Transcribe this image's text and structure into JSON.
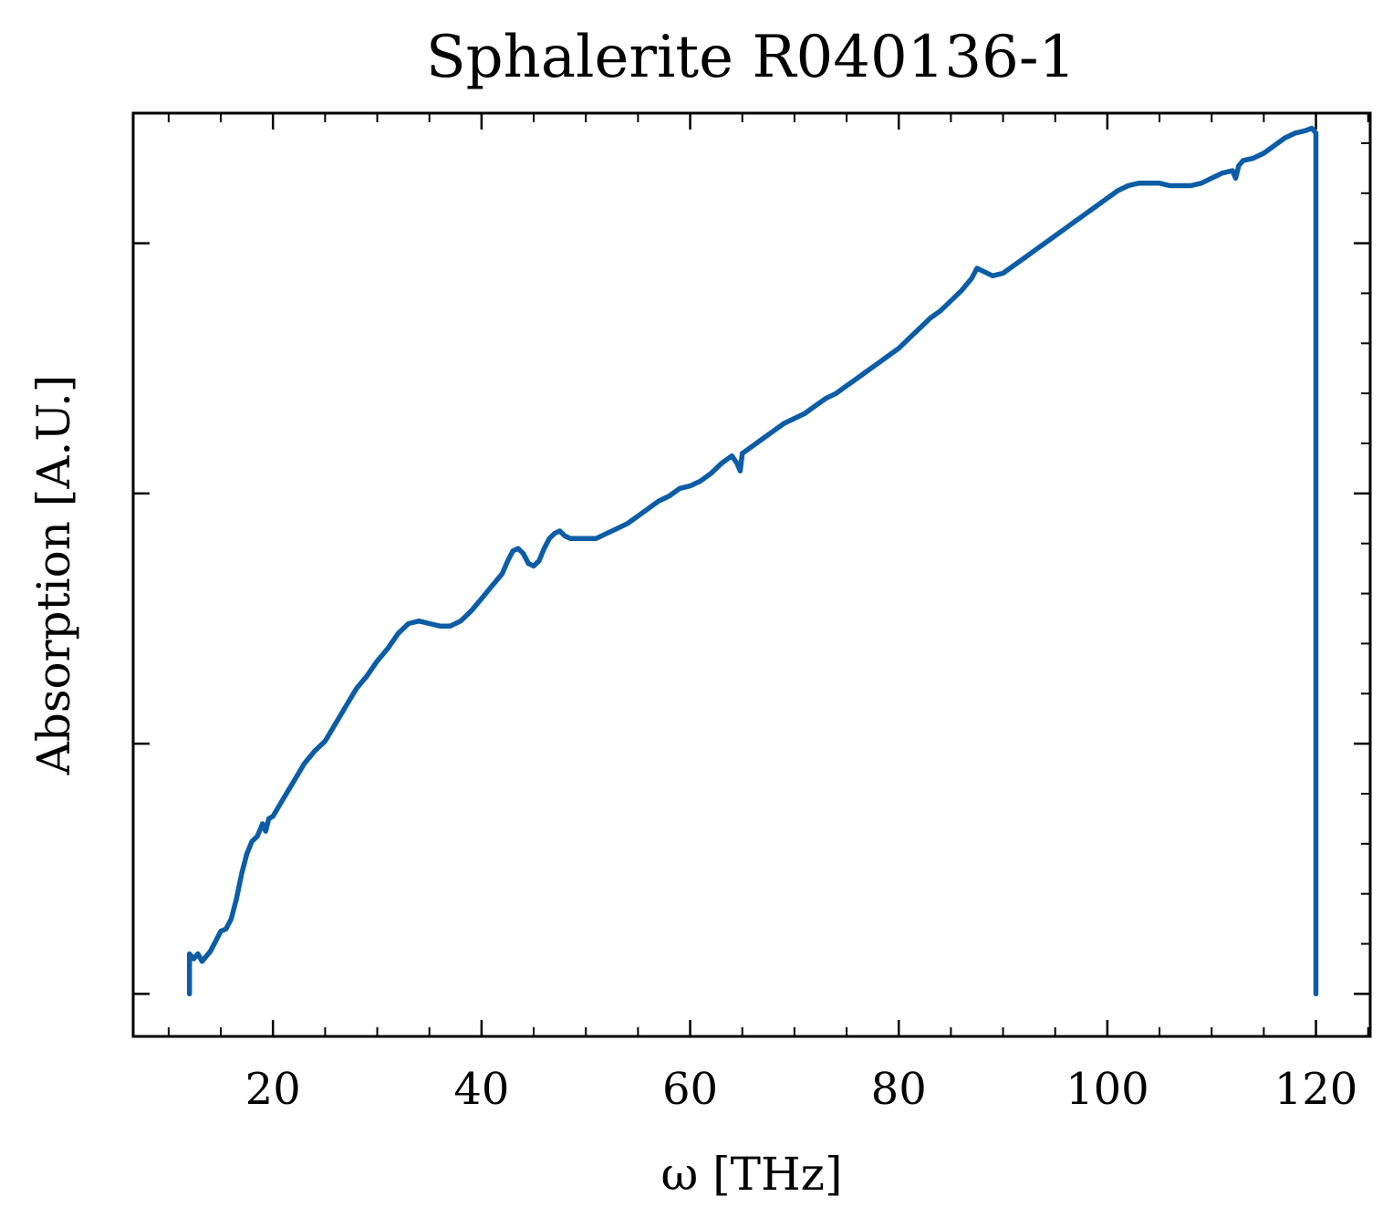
{
  "chart_data": {
    "type": "line",
    "title": "Sphalerite R040136-1",
    "xlabel": "ω [THz]",
    "ylabel": "Absorption [A.U.]",
    "xlim": [
      6.6,
      125.2
    ],
    "ylim": [
      -0.17,
      3.52
    ],
    "x_ticks": [
      20,
      40,
      60,
      80,
      100,
      120
    ],
    "x_tick_labels": [
      "20",
      "40",
      "60",
      "80",
      "100",
      "120"
    ],
    "y_ticks": [
      0,
      1,
      2,
      3
    ],
    "y_tick_labels": [],
    "grid": false,
    "color": "#0C5DA5",
    "series": [
      {
        "points": [
          [
            12.0,
            0.0
          ],
          [
            12.0,
            0.16
          ],
          [
            12.4,
            0.14
          ],
          [
            12.8,
            0.16
          ],
          [
            13.2,
            0.13
          ],
          [
            13.6,
            0.15
          ],
          [
            14.0,
            0.17
          ],
          [
            14.5,
            0.21
          ],
          [
            15.0,
            0.25
          ],
          [
            15.5,
            0.26
          ],
          [
            16.0,
            0.3
          ],
          [
            16.5,
            0.38
          ],
          [
            17.0,
            0.48
          ],
          [
            17.5,
            0.56
          ],
          [
            18.0,
            0.61
          ],
          [
            18.5,
            0.63
          ],
          [
            19.0,
            0.68
          ],
          [
            19.3,
            0.65
          ],
          [
            19.6,
            0.7
          ],
          [
            20.0,
            0.71
          ],
          [
            21.0,
            0.78
          ],
          [
            22.0,
            0.85
          ],
          [
            23.0,
            0.92
          ],
          [
            24.0,
            0.97
          ],
          [
            25.0,
            1.01
          ],
          [
            26.0,
            1.08
          ],
          [
            27.0,
            1.15
          ],
          [
            28.0,
            1.22
          ],
          [
            29.0,
            1.27
          ],
          [
            30.0,
            1.33
          ],
          [
            31.0,
            1.38
          ],
          [
            32.0,
            1.44
          ],
          [
            33.0,
            1.48
          ],
          [
            34.0,
            1.49
          ],
          [
            35.0,
            1.48
          ],
          [
            36.0,
            1.47
          ],
          [
            37.0,
            1.47
          ],
          [
            38.0,
            1.49
          ],
          [
            39.0,
            1.53
          ],
          [
            40.0,
            1.58
          ],
          [
            41.0,
            1.63
          ],
          [
            42.0,
            1.68
          ],
          [
            42.5,
            1.73
          ],
          [
            43.0,
            1.77
          ],
          [
            43.5,
            1.78
          ],
          [
            44.0,
            1.76
          ],
          [
            44.5,
            1.72
          ],
          [
            45.0,
            1.71
          ],
          [
            45.5,
            1.73
          ],
          [
            46.0,
            1.78
          ],
          [
            46.5,
            1.82
          ],
          [
            47.0,
            1.84
          ],
          [
            47.5,
            1.85
          ],
          [
            48.0,
            1.83
          ],
          [
            48.5,
            1.82
          ],
          [
            49.0,
            1.82
          ],
          [
            50.0,
            1.82
          ],
          [
            51.0,
            1.82
          ],
          [
            52.0,
            1.84
          ],
          [
            53.0,
            1.86
          ],
          [
            54.0,
            1.88
          ],
          [
            55.0,
            1.91
          ],
          [
            56.0,
            1.94
          ],
          [
            57.0,
            1.97
          ],
          [
            58.0,
            1.99
          ],
          [
            59.0,
            2.02
          ],
          [
            60.0,
            2.03
          ],
          [
            61.0,
            2.05
          ],
          [
            62.0,
            2.08
          ],
          [
            63.0,
            2.12
          ],
          [
            64.0,
            2.15
          ],
          [
            64.5,
            2.12
          ],
          [
            64.8,
            2.09
          ],
          [
            65.0,
            2.16
          ],
          [
            66.0,
            2.19
          ],
          [
            67.0,
            2.22
          ],
          [
            68.0,
            2.25
          ],
          [
            69.0,
            2.28
          ],
          [
            70.0,
            2.3
          ],
          [
            71.0,
            2.32
          ],
          [
            72.0,
            2.35
          ],
          [
            73.0,
            2.38
          ],
          [
            74.0,
            2.4
          ],
          [
            75.0,
            2.43
          ],
          [
            76.0,
            2.46
          ],
          [
            77.0,
            2.49
          ],
          [
            78.0,
            2.52
          ],
          [
            79.0,
            2.55
          ],
          [
            80.0,
            2.58
          ],
          [
            81.0,
            2.62
          ],
          [
            82.0,
            2.66
          ],
          [
            83.0,
            2.7
          ],
          [
            84.0,
            2.73
          ],
          [
            85.0,
            2.77
          ],
          [
            86.0,
            2.81
          ],
          [
            87.0,
            2.86
          ],
          [
            87.5,
            2.9
          ],
          [
            88.0,
            2.89
          ],
          [
            89.0,
            2.87
          ],
          [
            90.0,
            2.88
          ],
          [
            91.0,
            2.91
          ],
          [
            92.0,
            2.94
          ],
          [
            93.0,
            2.97
          ],
          [
            94.0,
            3.0
          ],
          [
            95.0,
            3.03
          ],
          [
            96.0,
            3.06
          ],
          [
            97.0,
            3.09
          ],
          [
            98.0,
            3.12
          ],
          [
            99.0,
            3.15
          ],
          [
            100.0,
            3.18
          ],
          [
            101.0,
            3.21
          ],
          [
            102.0,
            3.23
          ],
          [
            103.0,
            3.24
          ],
          [
            104.0,
            3.24
          ],
          [
            105.0,
            3.24
          ],
          [
            106.0,
            3.23
          ],
          [
            107.0,
            3.23
          ],
          [
            108.0,
            3.23
          ],
          [
            109.0,
            3.24
          ],
          [
            110.0,
            3.26
          ],
          [
            111.0,
            3.28
          ],
          [
            112.0,
            3.29
          ],
          [
            112.3,
            3.26
          ],
          [
            112.6,
            3.31
          ],
          [
            113.0,
            3.33
          ],
          [
            114.0,
            3.34
          ],
          [
            115.0,
            3.36
          ],
          [
            116.0,
            3.39
          ],
          [
            117.0,
            3.42
          ],
          [
            118.0,
            3.44
          ],
          [
            119.0,
            3.45
          ],
          [
            119.6,
            3.46
          ],
          [
            120.0,
            3.44
          ],
          [
            120.0,
            0.0
          ]
        ]
      }
    ]
  }
}
